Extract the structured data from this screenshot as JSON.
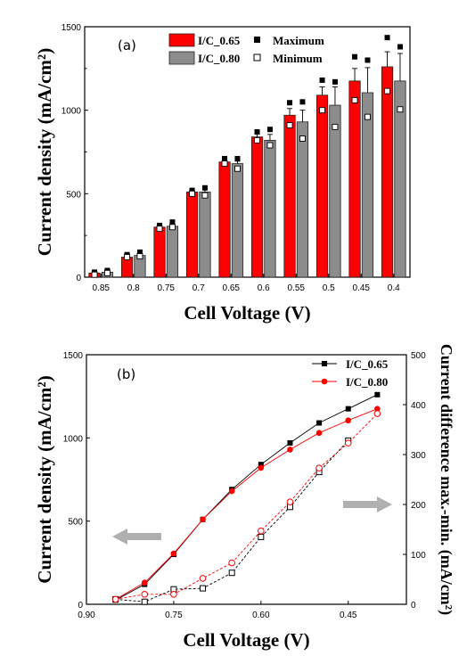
{
  "colors": {
    "red": "#ff0000",
    "gray": "#8c8c8c",
    "black": "#000000",
    "arrow": "#b0b0b0"
  },
  "chart_data": [
    {
      "type": "bar",
      "panel_label": "(a)",
      "xlabel": "Cell Voltage (V)",
      "ylabel": "Current density (mA/cm²)",
      "ylim": [
        0,
        1500
      ],
      "yticks": [
        0,
        500,
        1000,
        1500
      ],
      "categories": [
        "0.85",
        "0.8",
        "0.75",
        "0.7",
        "0.65",
        "0.6",
        "0.55",
        "0.5",
        "0.45",
        "0.4"
      ],
      "series": [
        {
          "name": "I/C_0.65",
          "color": "#ff0000",
          "values": [
            25,
            120,
            300,
            510,
            690,
            840,
            970,
            1090,
            1175,
            1260
          ],
          "err_up": [
            8,
            10,
            12,
            12,
            15,
            25,
            40,
            50,
            75,
            90
          ],
          "max": [
            30,
            135,
            310,
            520,
            710,
            870,
            1045,
            1180,
            1320,
            1435
          ],
          "min": [
            15,
            120,
            290,
            500,
            680,
            820,
            910,
            1000,
            1060,
            1115
          ]
        },
        {
          "name": "I/C_0.80",
          "color": "#8c8c8c",
          "values": [
            30,
            130,
            305,
            510,
            680,
            820,
            930,
            1030,
            1105,
            1175
          ],
          "err_up": [
            8,
            12,
            15,
            15,
            15,
            35,
            70,
            110,
            150,
            165
          ],
          "max": [
            40,
            150,
            330,
            535,
            710,
            885,
            1050,
            1170,
            1300,
            1380
          ],
          "min": [
            25,
            125,
            300,
            490,
            650,
            790,
            830,
            900,
            960,
            1005
          ]
        }
      ],
      "legend_markers": [
        {
          "label": "Maximum",
          "marker": "filled-square"
        },
        {
          "label": "Minimum",
          "marker": "open-square"
        }
      ]
    },
    {
      "type": "line",
      "panel_label": "(b)",
      "xlabel": "Cell Voltage (V)",
      "ylabel": "Current density (mA/cm²)",
      "y2label": "Current difference max.-min. (mA/cm²)",
      "xlim": [
        0.9,
        0.35
      ],
      "xticks": [
        "0.90",
        "0.75",
        "0.60",
        "0.45"
      ],
      "ylim": [
        0,
        1500
      ],
      "yticks": [
        0,
        500,
        1000,
        1500
      ],
      "y2lim": [
        0,
        500
      ],
      "y2ticks": [
        0,
        100,
        200,
        300,
        400,
        500
      ],
      "x": [
        0.85,
        0.8,
        0.75,
        0.7,
        0.65,
        0.6,
        0.55,
        0.5,
        0.45,
        0.4
      ],
      "series": [
        {
          "name": "I/C_0.65",
          "color": "#000000",
          "marker": "square",
          "axis": "left",
          "values": [
            25,
            120,
            300,
            510,
            690,
            840,
            970,
            1090,
            1175,
            1260
          ]
        },
        {
          "name": "I/C_0.80",
          "color": "#ff0000",
          "marker": "circle",
          "axis": "left",
          "values": [
            30,
            130,
            305,
            510,
            680,
            820,
            930,
            1030,
            1105,
            1175
          ]
        },
        {
          "color": "#000000",
          "marker": "open-square",
          "axis": "right",
          "dashed": true,
          "values": [
            10,
            5,
            30,
            32,
            63,
            135,
            195,
            265,
            328,
            null
          ]
        },
        {
          "color": "#ff0000",
          "marker": "open-circle",
          "axis": "right",
          "dashed": true,
          "values": [
            10,
            20,
            20,
            52,
            83,
            147,
            205,
            273,
            323,
            382
          ]
        }
      ]
    }
  ]
}
